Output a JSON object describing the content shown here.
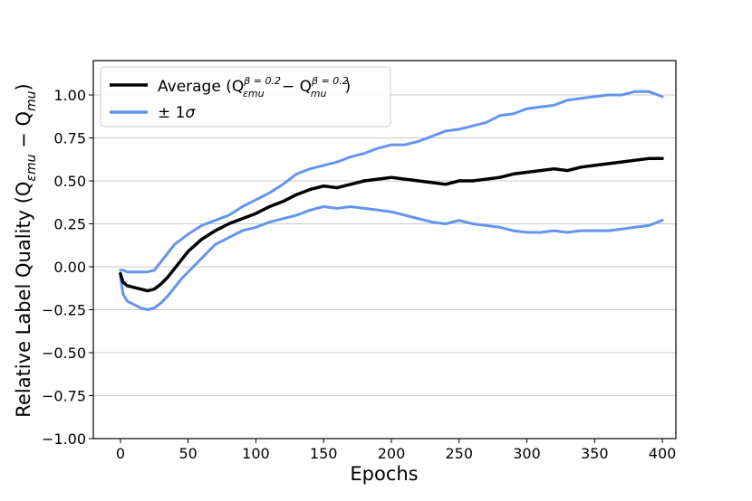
{
  "chart_data": {
    "type": "line",
    "title": "",
    "xlabel": "Epochs",
    "ylabel": "Relative Label Quality (Q",
    "ylabel_sub_1": "εmu",
    "ylabel_mid": " − Q",
    "ylabel_sub_2": "mu",
    "ylabel_end": ")",
    "xlim": [
      -20,
      410
    ],
    "ylim": [
      -1.0,
      1.2
    ],
    "grid": "horizontal",
    "legend_position": "top-left",
    "xticks": [
      0,
      50,
      100,
      150,
      200,
      250,
      300,
      350,
      400
    ],
    "xtick_labels": [
      "0",
      "50",
      "100",
      "150",
      "200",
      "250",
      "300",
      "350",
      "400"
    ],
    "yticks": [
      -1.0,
      -0.75,
      -0.5,
      -0.25,
      0.0,
      0.25,
      0.5,
      0.75,
      1.0
    ],
    "ytick_labels": [
      "−1.00",
      "−0.75",
      "−0.50",
      "−0.25",
      "0.00",
      "0.25",
      "0.50",
      "0.75",
      "1.00"
    ],
    "legend": {
      "average_prefix": "Average (Q",
      "average_sup_1": "β = 0.2",
      "average_sub_1": "εmu",
      "average_mid": " − Q",
      "average_sup_2": "β = 0.2",
      "average_sub_2": "mu",
      "average_suffix": ")",
      "band_prefix": "± 1",
      "band_sigma": "σ"
    },
    "series": [
      {
        "name": "Average",
        "color": "#000000",
        "x": [
          0,
          2,
          5,
          10,
          15,
          20,
          25,
          30,
          35,
          40,
          45,
          50,
          60,
          70,
          80,
          90,
          100,
          110,
          120,
          130,
          140,
          150,
          160,
          170,
          180,
          190,
          200,
          210,
          220,
          230,
          240,
          250,
          260,
          270,
          280,
          290,
          300,
          310,
          320,
          330,
          340,
          350,
          360,
          370,
          380,
          390,
          400
        ],
        "y": [
          -0.04,
          -0.09,
          -0.11,
          -0.12,
          -0.13,
          -0.14,
          -0.13,
          -0.1,
          -0.06,
          -0.01,
          0.04,
          0.09,
          0.16,
          0.21,
          0.25,
          0.28,
          0.31,
          0.35,
          0.38,
          0.42,
          0.45,
          0.47,
          0.46,
          0.48,
          0.5,
          0.51,
          0.52,
          0.51,
          0.5,
          0.49,
          0.48,
          0.5,
          0.5,
          0.51,
          0.52,
          0.54,
          0.55,
          0.56,
          0.57,
          0.56,
          0.58,
          0.59,
          0.6,
          0.61,
          0.62,
          0.63,
          0.63
        ]
      },
      {
        "name": "+1σ",
        "color": "#6495ed",
        "x": [
          0,
          2,
          5,
          10,
          15,
          20,
          25,
          30,
          35,
          40,
          45,
          50,
          60,
          70,
          80,
          90,
          100,
          110,
          120,
          130,
          140,
          150,
          160,
          170,
          180,
          190,
          200,
          210,
          220,
          230,
          240,
          250,
          260,
          270,
          280,
          290,
          300,
          310,
          320,
          330,
          340,
          350,
          360,
          370,
          380,
          390,
          400
        ],
        "y": [
          -0.02,
          -0.02,
          -0.03,
          -0.03,
          -0.03,
          -0.03,
          -0.02,
          0.03,
          0.08,
          0.13,
          0.16,
          0.19,
          0.24,
          0.27,
          0.3,
          0.35,
          0.39,
          0.43,
          0.48,
          0.54,
          0.57,
          0.59,
          0.61,
          0.64,
          0.66,
          0.69,
          0.71,
          0.71,
          0.73,
          0.76,
          0.79,
          0.8,
          0.82,
          0.84,
          0.88,
          0.89,
          0.92,
          0.93,
          0.94,
          0.97,
          0.98,
          0.99,
          1.0,
          1.0,
          1.02,
          1.02,
          0.99
        ]
      },
      {
        "name": "-1σ",
        "color": "#6495ed",
        "x": [
          0,
          2,
          5,
          10,
          15,
          20,
          25,
          30,
          35,
          40,
          45,
          50,
          60,
          70,
          80,
          90,
          100,
          110,
          120,
          130,
          140,
          150,
          160,
          170,
          180,
          190,
          200,
          210,
          220,
          230,
          240,
          250,
          260,
          270,
          280,
          290,
          300,
          310,
          320,
          330,
          340,
          350,
          360,
          370,
          380,
          390,
          400
        ],
        "y": [
          -0.06,
          -0.16,
          -0.2,
          -0.22,
          -0.24,
          -0.25,
          -0.24,
          -0.21,
          -0.17,
          -0.12,
          -0.07,
          -0.03,
          0.05,
          0.13,
          0.17,
          0.21,
          0.23,
          0.26,
          0.28,
          0.3,
          0.33,
          0.35,
          0.34,
          0.35,
          0.34,
          0.33,
          0.32,
          0.3,
          0.28,
          0.26,
          0.25,
          0.27,
          0.25,
          0.24,
          0.23,
          0.21,
          0.2,
          0.2,
          0.21,
          0.2,
          0.21,
          0.21,
          0.21,
          0.22,
          0.23,
          0.24,
          0.27
        ]
      }
    ]
  }
}
